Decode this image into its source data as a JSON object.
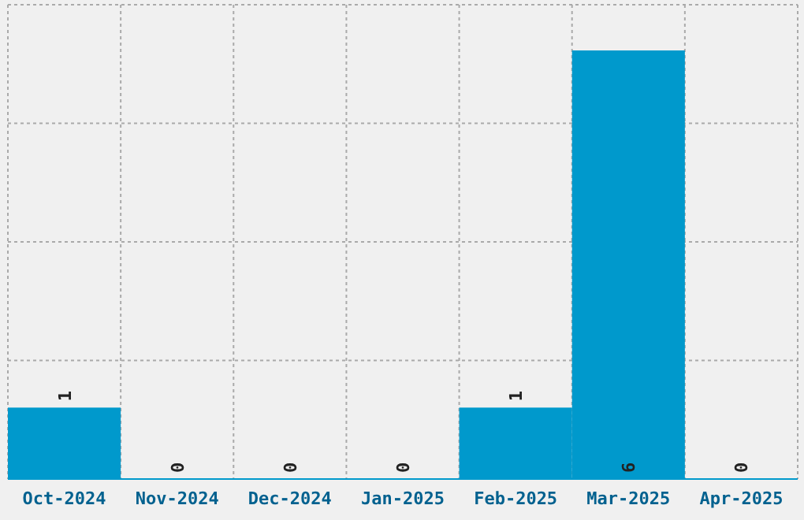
{
  "chart_data": {
    "type": "bar",
    "categories": [
      "Oct-2024",
      "Nov-2024",
      "Dec-2024",
      "Jan-2025",
      "Feb-2025",
      "Mar-2025",
      "Apr-2025"
    ],
    "values": [
      1,
      0,
      0,
      0,
      1,
      6,
      0
    ],
    "color": "#0099cc",
    "data_labels": true,
    "grid": true,
    "tick_labels": "x",
    "ylim": [
      0,
      6.64
    ],
    "yticks": [
      {
        "value": 0,
        "label": null
      },
      {
        "value": 1.66,
        "label": null
      },
      {
        "value": 3.32,
        "label": null
      },
      {
        "value": 4.98,
        "label": null
      },
      {
        "value": 6.64,
        "label": null
      }
    ]
  }
}
